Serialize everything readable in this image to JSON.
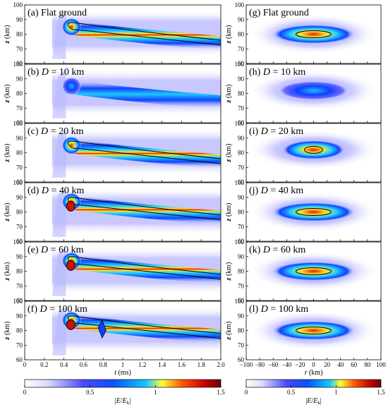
{
  "chart_data": [
    {
      "type": "heatmap",
      "panels": [
        "(a) Flat ground",
        "(b) D = 10 km",
        "(c) D = 20 km",
        "(d) D = 40 km",
        "(e) D = 60 km",
        "(f) D = 100 km"
      ],
      "panel_parts": [
        {
          "tag": "(a)",
          "name": "Flat ground",
          "dval": ""
        },
        {
          "tag": "(b)",
          "name": "D",
          "dval": " = 10 km"
        },
        {
          "tag": "(c)",
          "name": "D",
          "dval": " = 20 km"
        },
        {
          "tag": "(d)",
          "name": "D",
          "dval": " = 40 km"
        },
        {
          "tag": "(e)",
          "name": "D",
          "dval": " = 60 km"
        },
        {
          "tag": "(f)",
          "name": "D",
          "dval": " = 100 km"
        }
      ],
      "xlabel": "t (ms)",
      "xlabel_var": "t",
      "xlabel_unit": " (ms)",
      "ylabel": "z (km)",
      "ylabel_var": "z",
      "ylabel_unit": "(km)",
      "xlim": [
        0,
        2.0
      ],
      "ylim": [
        60,
        100
      ],
      "xticks": [
        0,
        0.2,
        0.4,
        0.6,
        0.8,
        1.0,
        1.2,
        1.4,
        1.6,
        1.8,
        2.0
      ],
      "xtick_labels": [
        "0",
        "0.2",
        "0.4",
        "0.6",
        "0.8",
        "1",
        "1.2",
        "1.4",
        "1.6",
        "1.8",
        "2.0"
      ],
      "yticks": [
        60,
        70,
        80,
        90,
        100
      ],
      "ytick_labels": [
        "60",
        "70",
        "80",
        "90",
        "100"
      ],
      "peak_altitude_km": [
        80,
        80,
        80,
        82,
        82,
        82
      ],
      "peak_intensity": [
        1.3,
        0.8,
        1.15,
        1.4,
        1.4,
        1.4
      ]
    },
    {
      "type": "heatmap",
      "panels": [
        "(g) Flat ground",
        "(h) D = 10 km",
        "(i) D = 20 km",
        "(j) D = 40 km",
        "(k) D = 60 km",
        "(l) D = 100 km"
      ],
      "panel_parts": [
        {
          "tag": "(g)",
          "name": "Flat ground",
          "dval": ""
        },
        {
          "tag": "(h)",
          "name": "D",
          "dval": " = 10 km"
        },
        {
          "tag": "(i)",
          "name": "D",
          "dval": " = 20 km"
        },
        {
          "tag": "(j)",
          "name": "D",
          "dval": " = 40 km"
        },
        {
          "tag": "(k)",
          "name": "D",
          "dval": " = 60 km"
        },
        {
          "tag": "(l)",
          "name": "D",
          "dval": " = 100 km"
        }
      ],
      "xlabel": "r (km)",
      "xlabel_var": "r",
      "xlabel_unit": " (km)",
      "ylabel": "z (km)",
      "ylabel_var": "z",
      "ylabel_unit": "(km)",
      "xlim": [
        -100,
        100
      ],
      "ylim": [
        60,
        100
      ],
      "xticks": [
        -100,
        -80,
        -60,
        -40,
        -20,
        0,
        20,
        40,
        60,
        80,
        100
      ],
      "xtick_labels": [
        "−100",
        "−80",
        "−60",
        "−40",
        "−20",
        "0",
        "20",
        "40",
        "60",
        "80",
        "100"
      ],
      "yticks": [
        60,
        70,
        80,
        90,
        100
      ],
      "ytick_labels": [
        "60",
        "70",
        "80",
        "90",
        "100"
      ],
      "peak_altitude_km": [
        80,
        82,
        82,
        80,
        80,
        80
      ],
      "peak_intensity": [
        1.3,
        0.7,
        1.1,
        1.3,
        1.3,
        1.3
      ]
    }
  ],
  "colorbar": {
    "label": "|E/E_k|",
    "label_main": "|",
    "label_e": "E",
    "label_slash": "/",
    "label_ek": "E",
    "label_k": "k",
    "label_end": "|",
    "range": [
      0,
      1.5
    ],
    "ticks": [
      "0",
      "0.5",
      "1",
      "1.5"
    ],
    "colors": [
      "#ffffff",
      "#4a4aff",
      "#0a50ff",
      "#15c8ff",
      "#ffff30",
      "#ff5a00",
      "#c80000",
      "#6a0000"
    ]
  }
}
